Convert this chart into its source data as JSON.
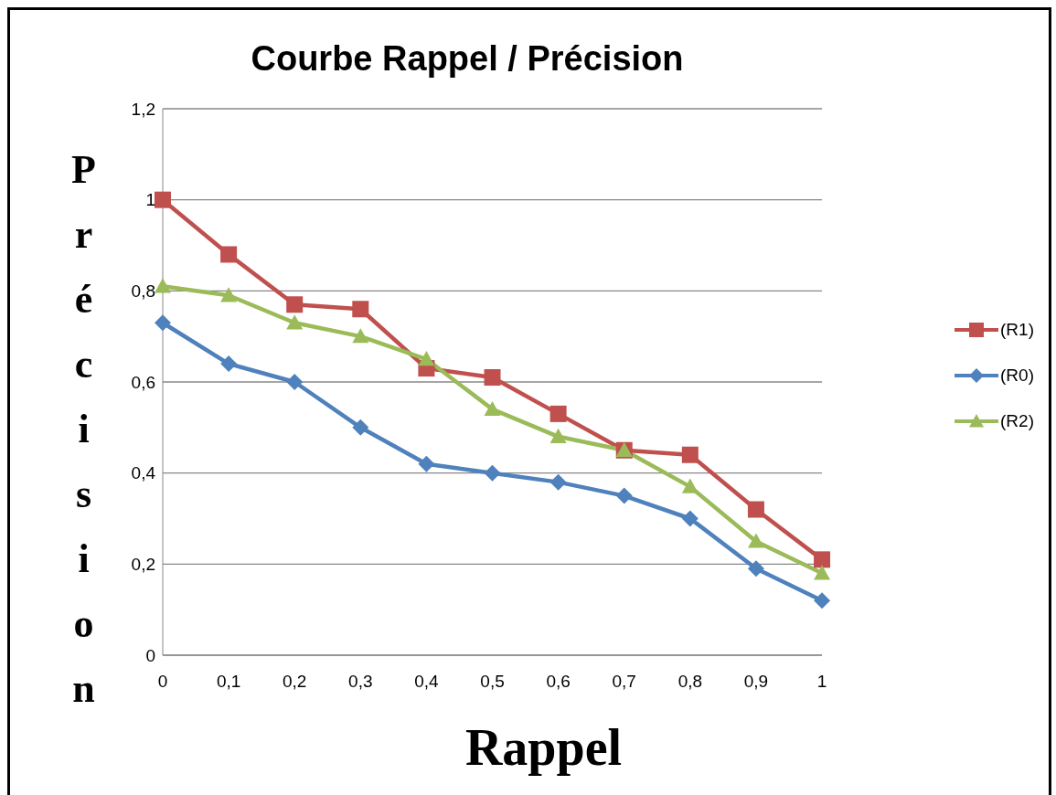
{
  "chart_data": {
    "type": "line",
    "title": "Courbe Rappel / Précision",
    "xlabel": "Rappel",
    "ylabel": "Précision",
    "categories": [
      "0",
      "0,1",
      "0,2",
      "0,3",
      "0,4",
      "0,5",
      "0,6",
      "0,7",
      "0,8",
      "0,9",
      "1"
    ],
    "series": [
      {
        "name": "(R1)",
        "color": "#c0504d",
        "marker": "square",
        "values": [
          1.0,
          0.88,
          0.77,
          0.76,
          0.63,
          0.61,
          0.53,
          0.45,
          0.44,
          0.32,
          0.21
        ]
      },
      {
        "name": "(R0)",
        "color": "#4f81bd",
        "marker": "diamond",
        "values": [
          0.73,
          0.64,
          0.6,
          0.5,
          0.42,
          0.4,
          0.38,
          0.35,
          0.3,
          0.19,
          0.12
        ]
      },
      {
        "name": "(R2)",
        "color": "#9bbb59",
        "marker": "triangle",
        "values": [
          0.81,
          0.79,
          0.73,
          0.7,
          0.65,
          0.54,
          0.48,
          0.45,
          0.37,
          0.25,
          0.18
        ]
      }
    ],
    "ylim": [
      0,
      1.2
    ],
    "yticks": [
      0,
      {
        "value": 0.2,
        "label": "0,2"
      },
      {
        "value": 0.4,
        "label": "0,4"
      },
      {
        "value": 0.6,
        "label": "0,6"
      },
      {
        "value": 0.8,
        "label": "0,8"
      },
      1,
      {
        "value": 1.2,
        "label": "1,2"
      }
    ],
    "grid": "y",
    "legend": "right",
    "line_style": "solid"
  }
}
